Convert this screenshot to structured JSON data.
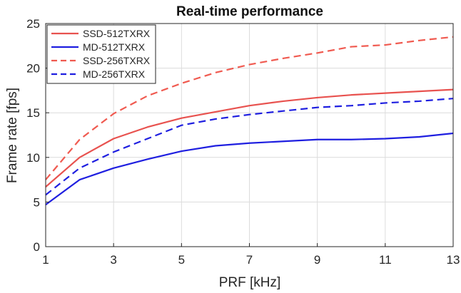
{
  "chart_data": {
    "type": "line",
    "title": "Real-time performance",
    "xlabel": "PRF [kHz]",
    "ylabel": "Frame rate [fps]",
    "xlim": [
      1,
      13
    ],
    "ylim": [
      0,
      25
    ],
    "xticks": [
      1,
      3,
      5,
      7,
      9,
      11,
      13
    ],
    "yticks": [
      0,
      5,
      10,
      15,
      20,
      25
    ],
    "grid": true,
    "legend_position": "top-left",
    "x": [
      1,
      2,
      3,
      4,
      5,
      6,
      7,
      8,
      9,
      10,
      11,
      12,
      13
    ],
    "series": [
      {
        "name": "SSD-512TXRX",
        "color": "#e8524f",
        "dash": "solid",
        "values": [
          6.7,
          10.0,
          12.1,
          13.4,
          14.4,
          15.1,
          15.8,
          16.3,
          16.7,
          17.0,
          17.2,
          17.4,
          17.6
        ]
      },
      {
        "name": "MD-512TXRX",
        "color": "#1f1fe0",
        "dash": "solid",
        "values": [
          4.7,
          7.5,
          8.8,
          9.8,
          10.7,
          11.3,
          11.6,
          11.8,
          12.0,
          12.0,
          12.1,
          12.3,
          12.7
        ]
      },
      {
        "name": "SSD-256TXRX",
        "color": "#f05a50",
        "dash": "dashed",
        "values": [
          7.5,
          12.0,
          14.9,
          16.9,
          18.3,
          19.5,
          20.4,
          21.1,
          21.7,
          22.4,
          22.6,
          23.1,
          23.5
        ]
      },
      {
        "name": "MD-256TXRX",
        "color": "#1f1fe0",
        "dash": "dashed",
        "values": [
          5.8,
          8.8,
          10.6,
          12.1,
          13.6,
          14.3,
          14.8,
          15.2,
          15.6,
          15.8,
          16.1,
          16.3,
          16.6
        ]
      }
    ]
  }
}
